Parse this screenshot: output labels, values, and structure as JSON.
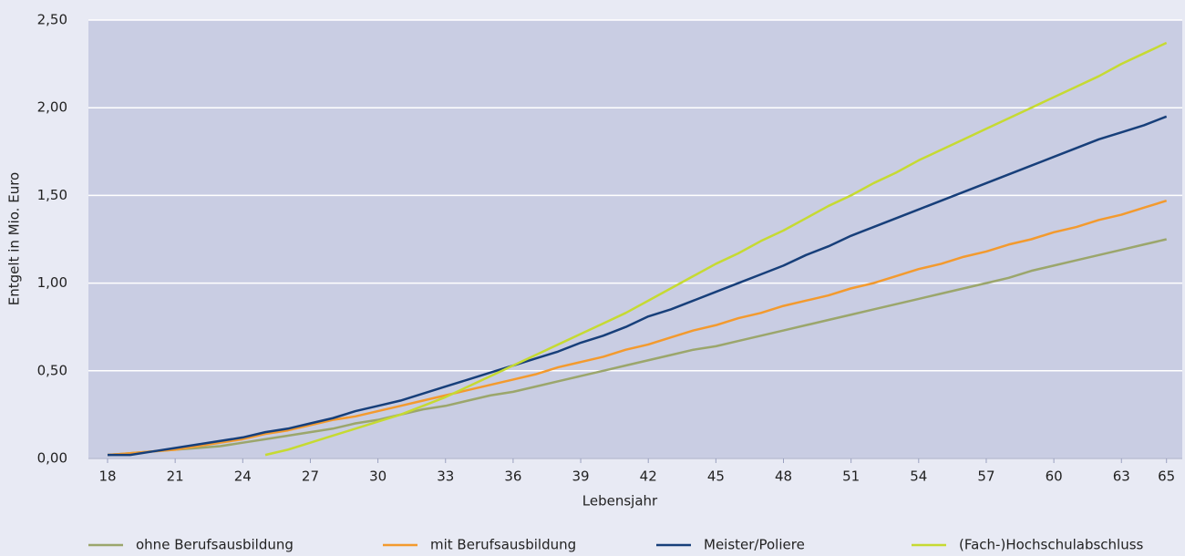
{
  "chart_data": {
    "type": "line",
    "x_label": "Lebensjahr",
    "y_label": "Entgelt in Mio. Euro",
    "x": [
      18,
      19,
      20,
      21,
      22,
      23,
      24,
      25,
      26,
      27,
      28,
      29,
      30,
      31,
      32,
      33,
      34,
      35,
      36,
      37,
      38,
      39,
      40,
      41,
      42,
      43,
      44,
      45,
      46,
      47,
      48,
      49,
      50,
      51,
      52,
      53,
      54,
      55,
      56,
      57,
      58,
      59,
      60,
      61,
      62,
      63,
      64,
      65
    ],
    "xlim": [
      17.15,
      65.7
    ],
    "xticks": [
      18,
      21,
      24,
      27,
      30,
      33,
      36,
      39,
      42,
      45,
      48,
      51,
      54,
      57,
      60,
      63,
      65
    ],
    "ylim": [
      0,
      2.5
    ],
    "yticks": [
      {
        "value": 0,
        "label": "0,00"
      },
      {
        "value": 0.5,
        "label": "0,50"
      },
      {
        "value": 1,
        "label": "1,00"
      },
      {
        "value": 1.5,
        "label": "1,50"
      },
      {
        "value": 2,
        "label": "2,00"
      },
      {
        "value": 2.5,
        "label": "2,50"
      }
    ],
    "grid": true,
    "legend": "bottom",
    "series": [
      {
        "name": "ohne Berufsausbildung",
        "color": "#9ba66c",
        "values": [
          0.02,
          0.03,
          0.04,
          0.05,
          0.06,
          0.07,
          0.09,
          0.11,
          0.13,
          0.15,
          0.17,
          0.2,
          0.22,
          0.25,
          0.28,
          0.3,
          0.33,
          0.36,
          0.38,
          0.41,
          0.44,
          0.47,
          0.5,
          0.53,
          0.56,
          0.59,
          0.62,
          0.64,
          0.67,
          0.7,
          0.73,
          0.76,
          0.79,
          0.82,
          0.85,
          0.88,
          0.91,
          0.94,
          0.97,
          1.0,
          1.03,
          1.07,
          1.1,
          1.13,
          1.16,
          1.19,
          1.22,
          1.25
        ]
      },
      {
        "name": "mit Berufsausbildung",
        "color": "#f39a2e",
        "values": [
          0.02,
          0.03,
          0.04,
          0.05,
          0.07,
          0.09,
          0.11,
          0.14,
          0.16,
          0.19,
          0.22,
          0.24,
          0.27,
          0.3,
          0.33,
          0.36,
          0.39,
          0.42,
          0.45,
          0.48,
          0.52,
          0.55,
          0.58,
          0.62,
          0.65,
          0.69,
          0.73,
          0.76,
          0.8,
          0.83,
          0.87,
          0.9,
          0.93,
          0.97,
          1.0,
          1.04,
          1.08,
          1.11,
          1.15,
          1.18,
          1.22,
          1.25,
          1.29,
          1.32,
          1.36,
          1.39,
          1.43,
          1.47
        ]
      },
      {
        "name": "Meister/Poliere",
        "color": "#173f7a",
        "values": [
          0.02,
          0.02,
          0.04,
          0.06,
          0.08,
          0.1,
          0.12,
          0.15,
          0.17,
          0.2,
          0.23,
          0.27,
          0.3,
          0.33,
          0.37,
          0.41,
          0.45,
          0.49,
          0.53,
          0.57,
          0.61,
          0.66,
          0.7,
          0.75,
          0.81,
          0.85,
          0.9,
          0.95,
          1.0,
          1.05,
          1.1,
          1.16,
          1.21,
          1.27,
          1.32,
          1.37,
          1.42,
          1.47,
          1.52,
          1.57,
          1.62,
          1.67,
          1.72,
          1.77,
          1.82,
          1.86,
          1.9,
          1.95
        ]
      },
      {
        "name": "(Fach-)Hochschulabschluss",
        "color": "#c6da32",
        "values": [
          null,
          null,
          null,
          null,
          null,
          null,
          null,
          0.02,
          0.05,
          0.09,
          0.13,
          0.17,
          0.21,
          0.25,
          0.3,
          0.35,
          0.41,
          0.47,
          0.53,
          0.59,
          0.65,
          0.71,
          0.77,
          0.83,
          0.9,
          0.97,
          1.04,
          1.11,
          1.17,
          1.24,
          1.3,
          1.37,
          1.44,
          1.5,
          1.57,
          1.63,
          1.7,
          1.76,
          1.82,
          1.88,
          1.94,
          2.0,
          2.06,
          2.12,
          2.18,
          2.25,
          2.31,
          2.37
        ]
      }
    ]
  }
}
